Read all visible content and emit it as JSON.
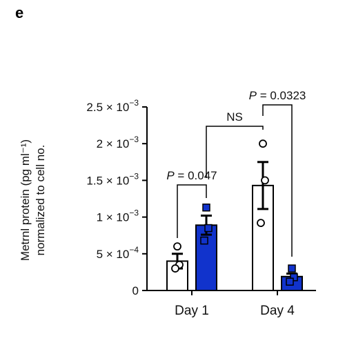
{
  "panel_label": "e",
  "chart_data": {
    "type": "bar",
    "categories": [
      "Day 1",
      "Day 4"
    ],
    "ylabel_line1": "Metrnl protein (pg ml⁻¹)",
    "ylabel_line2": "normalized to cell no.",
    "ylim": [
      0,
      0.0025
    ],
    "yticks": [
      {
        "value": 0,
        "mantissa": "0",
        "exponent": ""
      },
      {
        "value": 0.0005,
        "mantissa": "5 × 10",
        "exponent": "−4"
      },
      {
        "value": 0.001,
        "mantissa": "1 × 10",
        "exponent": "−3"
      },
      {
        "value": 0.0015,
        "mantissa": "1.5 × 10",
        "exponent": "−3"
      },
      {
        "value": 0.002,
        "mantissa": "2 × 10",
        "exponent": "−3"
      },
      {
        "value": 0.0025,
        "mantissa": "2.5 × 10",
        "exponent": "−3"
      }
    ],
    "series": [
      {
        "fill": "#ffffff",
        "marker": "circle",
        "values": [
          0.0004,
          0.00143
        ],
        "errors": [
          0.0001,
          0.00032
        ],
        "points": [
          [
            0.0006,
            0.00035,
            0.0003
          ],
          [
            0.002,
            0.0015,
            0.00092
          ]
        ]
      },
      {
        "fill": "#1133cc",
        "marker": "square",
        "values": [
          0.00089,
          0.00019
        ],
        "errors": [
          0.00013,
          4e-05
        ],
        "points": [
          [
            0.00113,
            0.00085,
            0.00068
          ],
          [
            0.0003,
            0.00018,
            0.00012
          ]
        ]
      }
    ],
    "annotations": [
      {
        "text": "P = 0.047",
        "type": "p",
        "p_value": "0.047"
      },
      {
        "text": "NS",
        "type": "ns"
      },
      {
        "text": "P = 0.0323",
        "type": "p",
        "p_value": "0.0323"
      }
    ]
  }
}
